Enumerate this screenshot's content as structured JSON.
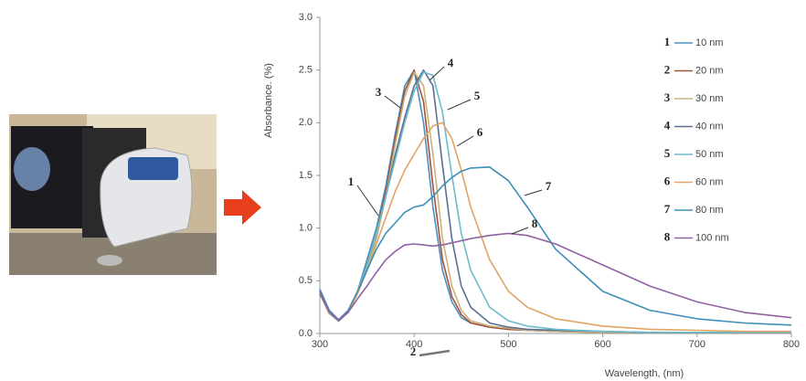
{
  "chart_data": {
    "type": "line",
    "xlabel": "Wavelength, (nm)",
    "ylabel": "Absorbance. (%)",
    "x": [
      300,
      310,
      320,
      330,
      340,
      350,
      360,
      370,
      380,
      390,
      400,
      410,
      420,
      430,
      440,
      450,
      460,
      480,
      500,
      520,
      550,
      600,
      650,
      700,
      750,
      800
    ],
    "xlim": [
      300,
      800
    ],
    "xticks": [
      300,
      400,
      500,
      600,
      700,
      800
    ],
    "ylim": [
      0,
      3
    ],
    "yticks": [
      {
        "value": 0,
        "label": "0.0"
      },
      0.5,
      {
        "value": 1,
        "label": "1.0"
      },
      1.5,
      {
        "value": 2,
        "label": "2.0"
      },
      2.5,
      {
        "value": 3,
        "label": "3.0"
      }
    ],
    "series": [
      {
        "label": "1",
        "name": "10 nm",
        "color": "#4a8fc0",
        "values": [
          0.4,
          0.2,
          0.12,
          0.2,
          0.4,
          0.7,
          1.0,
          1.4,
          1.9,
          2.35,
          2.5,
          2.0,
          1.2,
          0.6,
          0.3,
          0.15,
          0.1,
          0.06,
          0.04,
          0.03,
          0.02,
          0.01,
          0.01,
          0.01,
          0.01,
          0.01
        ]
      },
      {
        "label": "2",
        "name": "20 nm",
        "color": "#a0523a",
        "values": [
          0.38,
          0.19,
          0.12,
          0.2,
          0.4,
          0.65,
          0.95,
          1.35,
          1.85,
          2.3,
          2.5,
          2.2,
          1.4,
          0.7,
          0.35,
          0.18,
          0.1,
          0.06,
          0.04,
          0.03,
          0.02,
          0.01,
          0.01,
          0.01,
          0.01,
          0.01
        ]
      },
      {
        "label": "3",
        "name": "30 nm",
        "color": "#c9b27c",
        "values": [
          0.38,
          0.19,
          0.12,
          0.2,
          0.38,
          0.6,
          0.9,
          1.3,
          1.8,
          2.25,
          2.48,
          2.35,
          1.7,
          0.9,
          0.45,
          0.22,
          0.12,
          0.07,
          0.05,
          0.03,
          0.02,
          0.01,
          0.01,
          0.01,
          0.01,
          0.01
        ]
      },
      {
        "label": "4",
        "name": "40 nm",
        "color": "#5b7090",
        "values": [
          0.38,
          0.2,
          0.12,
          0.2,
          0.4,
          0.65,
          0.95,
          1.3,
          1.7,
          2.05,
          2.35,
          2.5,
          2.35,
          1.6,
          0.9,
          0.45,
          0.25,
          0.1,
          0.06,
          0.04,
          0.03,
          0.02,
          0.01,
          0.01,
          0.01,
          0.01
        ]
      },
      {
        "label": "5",
        "name": "50 nm",
        "color": "#6cbccc",
        "values": [
          0.4,
          0.2,
          0.13,
          0.2,
          0.4,
          0.65,
          0.95,
          1.3,
          1.65,
          2.0,
          2.3,
          2.48,
          2.45,
          2.1,
          1.5,
          0.95,
          0.6,
          0.25,
          0.12,
          0.07,
          0.04,
          0.02,
          0.01,
          0.01,
          0.01,
          0.01
        ]
      },
      {
        "label": "6",
        "name": "60 nm",
        "color": "#e0a464",
        "values": [
          0.4,
          0.2,
          0.13,
          0.2,
          0.38,
          0.6,
          0.85,
          1.1,
          1.35,
          1.55,
          1.7,
          1.85,
          1.97,
          2.0,
          1.85,
          1.55,
          1.2,
          0.7,
          0.4,
          0.25,
          0.14,
          0.07,
          0.04,
          0.03,
          0.02,
          0.02
        ]
      },
      {
        "label": "7",
        "name": "80 nm",
        "color": "#3d8fb5",
        "values": [
          0.42,
          0.22,
          0.13,
          0.22,
          0.4,
          0.6,
          0.8,
          0.95,
          1.05,
          1.15,
          1.2,
          1.22,
          1.3,
          1.4,
          1.48,
          1.54,
          1.57,
          1.58,
          1.45,
          1.2,
          0.8,
          0.4,
          0.22,
          0.14,
          0.1,
          0.08
        ]
      },
      {
        "label": "8",
        "name": "100 nm",
        "color": "#9062a2",
        "values": [
          0.4,
          0.2,
          0.13,
          0.2,
          0.33,
          0.45,
          0.58,
          0.7,
          0.78,
          0.84,
          0.85,
          0.84,
          0.83,
          0.84,
          0.86,
          0.88,
          0.9,
          0.93,
          0.95,
          0.93,
          0.85,
          0.65,
          0.45,
          0.3,
          0.2,
          0.15
        ]
      }
    ]
  }
}
